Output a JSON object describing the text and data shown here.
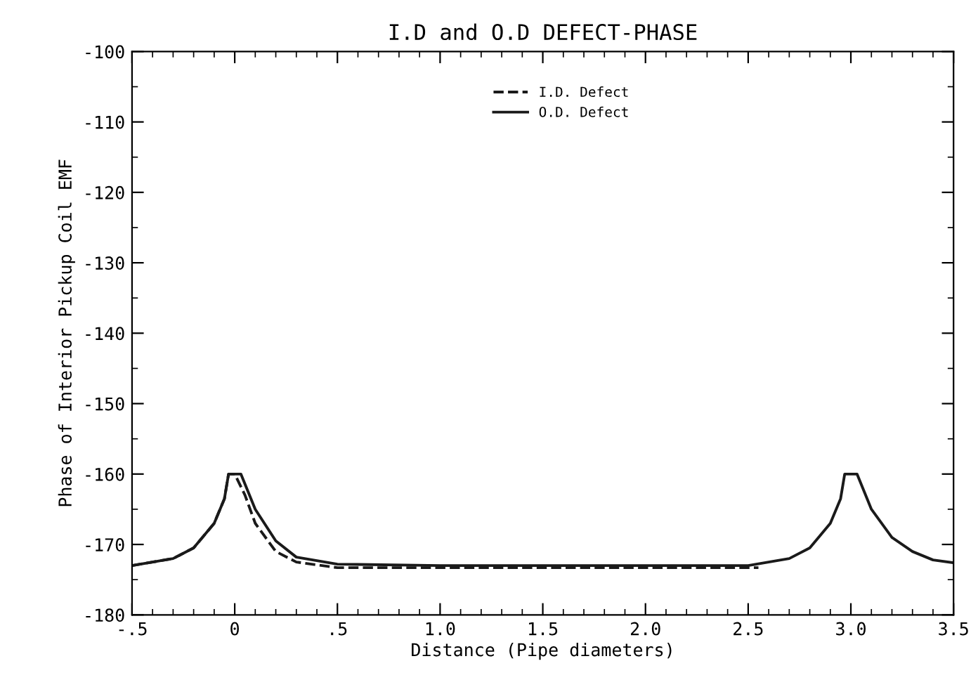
{
  "chart_data": {
    "type": "line",
    "title": "I.D and O.D DEFECT-PHASE",
    "xlabel": "Distance (Pipe diameters)",
    "ylabel": "Phase of Interior Pickup Coil EMF",
    "series": [
      {
        "name": "I.D. Defect",
        "color": "#1a1a1a",
        "line_style": "dashed",
        "x": [
          -0.5,
          -0.3,
          -0.2,
          -0.1,
          -0.05,
          -0.03,
          0.0,
          0.05,
          0.1,
          0.2,
          0.3,
          0.5,
          1.0,
          1.5,
          2.0,
          2.55
        ],
        "values": [
          -173,
          -172,
          -170.5,
          -167,
          -163.5,
          -160,
          -160,
          -163,
          -167,
          -171,
          -172.5,
          -173.3,
          -173.3,
          -173.3,
          -173.3,
          -173.3
        ]
      },
      {
        "name": "O.D. Defect",
        "color": "#1a1a1a",
        "line_style": "solid",
        "x": [
          -0.5,
          -0.3,
          -0.2,
          -0.1,
          -0.05,
          -0.03,
          0.03,
          0.1,
          0.2,
          0.3,
          0.5,
          1.0,
          1.5,
          2.0,
          2.5,
          2.7,
          2.8,
          2.9,
          2.95,
          2.97,
          3.03,
          3.1,
          3.2,
          3.3,
          3.4,
          3.5
        ],
        "values": [
          -173,
          -172,
          -170.5,
          -167,
          -163.5,
          -160,
          -160,
          -165,
          -169.5,
          -171.8,
          -172.8,
          -173,
          -173,
          -173,
          -173,
          -172,
          -170.5,
          -167,
          -163.5,
          -160,
          -160,
          -165,
          -169,
          -171,
          -172.2,
          -172.6
        ]
      }
    ],
    "xlim": [
      -0.5,
      3.5
    ],
    "ylim": [
      -180,
      -100
    ],
    "xticks": [
      {
        "value": -0.5,
        "label": "-.5"
      },
      {
        "value": 0,
        "label": "0"
      },
      {
        "value": 0.5,
        "label": ".5"
      },
      {
        "value": 1.0,
        "label": "1.0"
      },
      {
        "value": 1.5,
        "label": "1.5"
      },
      {
        "value": 2.0,
        "label": "2.0"
      },
      {
        "value": 2.5,
        "label": "2.5"
      },
      {
        "value": 3.0,
        "label": "3.0"
      },
      {
        "value": 3.5,
        "label": "3.5"
      }
    ],
    "yticks": [
      -180,
      -170,
      -160,
      -150,
      -140,
      -130,
      -120,
      -110,
      -100
    ],
    "grid": false,
    "legend": "top right",
    "marker": "none"
  }
}
